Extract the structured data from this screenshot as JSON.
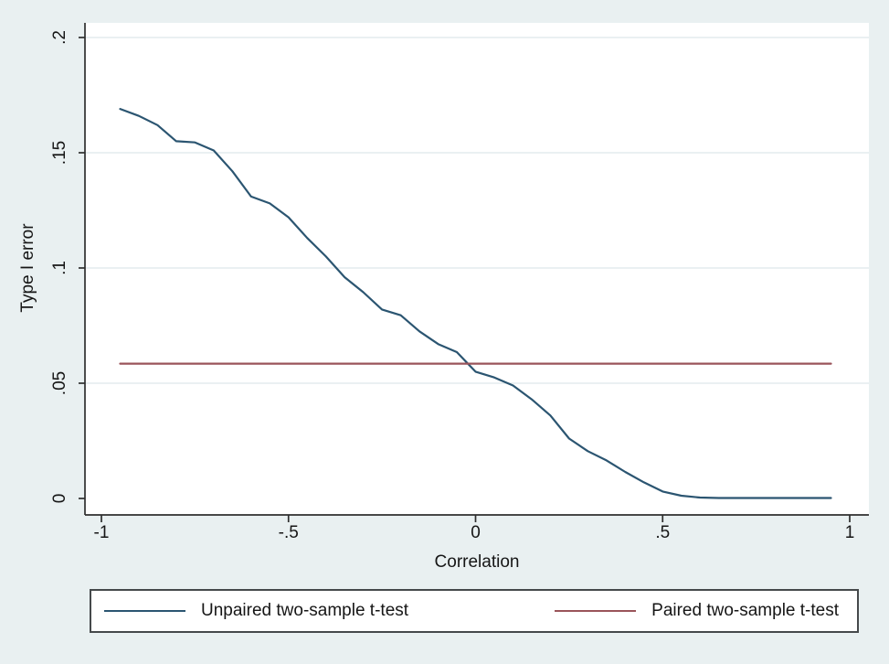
{
  "colors": {
    "background": "#e9f0f1",
    "plot_background": "#ffffff",
    "grid": "#e4ebed",
    "axis": "#2e2e2e",
    "text": "#161616",
    "navy": "#2b5571",
    "maroon": "#9a545a",
    "legend_border": "#45494b"
  },
  "chart_data": {
    "type": "line",
    "title": "",
    "xlabel": "Correlation",
    "ylabel": "Type I error",
    "xlim": [
      -1,
      1
    ],
    "ylim": [
      0,
      0.2
    ],
    "grid": "horizontal",
    "legend_position": "bottom-outside",
    "x_ticks": [
      {
        "value": -1,
        "label": "-1"
      },
      {
        "value": -0.5,
        "label": "-.5"
      },
      {
        "value": 0,
        "label": "0"
      },
      {
        "value": 0.5,
        "label": ".5"
      },
      {
        "value": 1,
        "label": "1"
      }
    ],
    "y_ticks": [
      {
        "value": 0,
        "label": "0"
      },
      {
        "value": 0.05,
        "label": ".05"
      },
      {
        "value": 0.1,
        "label": ".1"
      },
      {
        "value": 0.15,
        "label": ".15"
      },
      {
        "value": 0.2,
        "label": ".2"
      }
    ],
    "x": [
      -0.95,
      -0.9,
      -0.85,
      -0.8,
      -0.75,
      -0.7,
      -0.65,
      -0.6,
      -0.55,
      -0.5,
      -0.45,
      -0.4,
      -0.35,
      -0.3,
      -0.25,
      -0.2,
      -0.15,
      -0.1,
      -0.05,
      0,
      0.05,
      0.1,
      0.15,
      0.2,
      0.25,
      0.3,
      0.35,
      0.4,
      0.45,
      0.5,
      0.55,
      0.6,
      0.65,
      0.7,
      0.75,
      0.8,
      0.85,
      0.9,
      0.95
    ],
    "series": [
      {
        "name": "Unpaired two-sample t-test",
        "color_key": "navy",
        "values": [
          0.169,
          0.166,
          0.162,
          0.155,
          0.1545,
          0.151,
          0.142,
          0.131,
          0.128,
          0.122,
          0.113,
          0.105,
          0.096,
          0.0895,
          0.082,
          0.0795,
          0.0725,
          0.067,
          0.0635,
          0.055,
          0.0525,
          0.049,
          0.043,
          0.036,
          0.026,
          0.0205,
          0.0165,
          0.0115,
          0.007,
          0.003,
          0.0012,
          0.0004,
          0.0002,
          0.0002,
          0.0002,
          0.0002,
          0.0002,
          0.0002,
          0.0002
        ]
      },
      {
        "name": "Paired two-sample t-test",
        "color_key": "maroon",
        "values": [
          0.0585,
          0.0585,
          0.0585,
          0.0585,
          0.0585,
          0.0585,
          0.0585,
          0.0585,
          0.0585,
          0.0585,
          0.0585,
          0.0585,
          0.0585,
          0.0585,
          0.0585,
          0.0585,
          0.0585,
          0.0585,
          0.0585,
          0.0585,
          0.0585,
          0.0585,
          0.0585,
          0.0585,
          0.0585,
          0.0585,
          0.0585,
          0.0585,
          0.0585,
          0.0585,
          0.0585,
          0.0585,
          0.0585,
          0.0585,
          0.0585,
          0.0585,
          0.0585,
          0.0585,
          0.0585
        ]
      }
    ]
  },
  "legend": {
    "items": [
      {
        "label": "Unpaired two-sample t-test",
        "color_key": "navy"
      },
      {
        "label": "Paired two-sample t-test",
        "color_key": "maroon"
      }
    ]
  }
}
